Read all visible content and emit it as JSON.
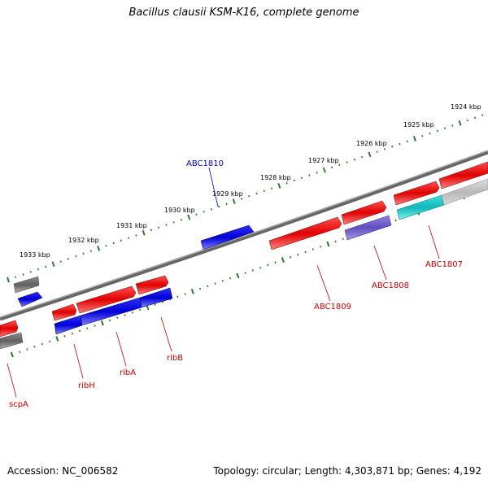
{
  "header": {
    "title": "Bacillus clausii KSM-K16, complete genome"
  },
  "footer": {
    "accession": "Accession: NC_006582",
    "topology": "Topology: circular; Length: 4,303,871 bp; Genes: 4,192"
  },
  "colors": {
    "forward_gene": "#e00000",
    "reverse_gene": "#0000e0",
    "rna_or_pseudo": "#707070",
    "cyan_gene": "#20c0c0",
    "purple_gene": "#7060c0",
    "tick": "#2a7a2a",
    "backbone": "#7a7a7a",
    "forward_label": "#cc0000",
    "reverse_label": "#0000cc"
  },
  "ruler_labels": [
    "1933 kbp",
    "1932 kbp",
    "1931 kbp",
    "1930 kbp",
    "1929 kbp",
    "1928 kbp",
    "1927 kbp",
    "1926 kbp",
    "1925 kbp",
    "1924 kbp"
  ],
  "gene_labels": {
    "ABC1810": "ABC1810",
    "ABC1809": "ABC1809",
    "ABC1808": "ABC1808",
    "ABC1807": "ABC1807",
    "ribH": "ribH",
    "ribA": "ribA",
    "ribB": "ribB",
    "scpA": "scpA"
  }
}
